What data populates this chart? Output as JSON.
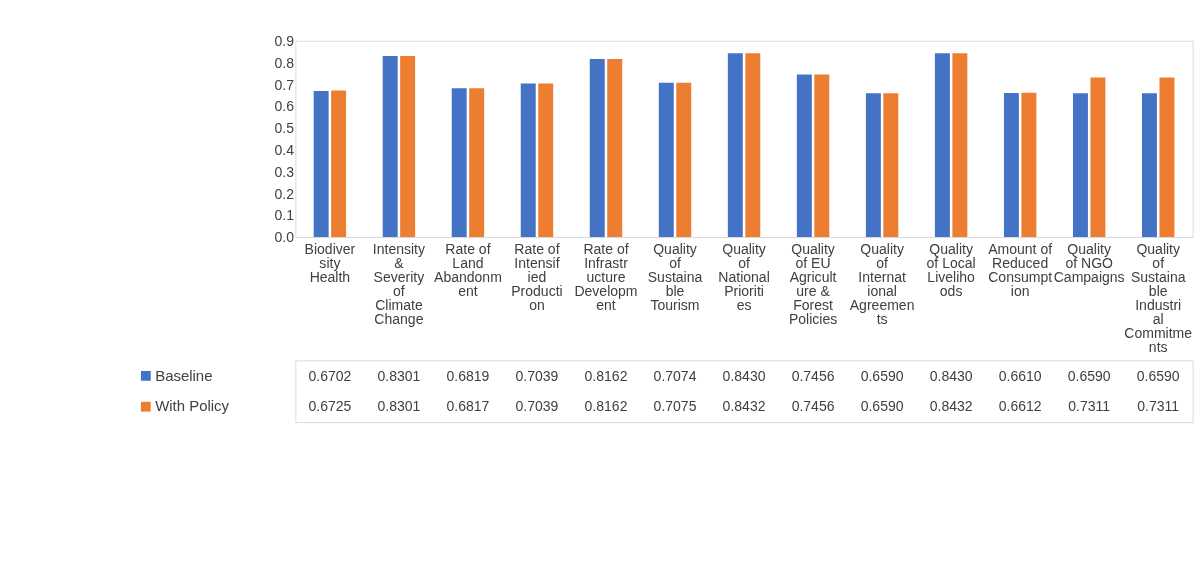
{
  "chart_data": {
    "type": "bar",
    "categories": [
      "Biodiversity Health",
      "Intensity & Severity of Climate Change",
      "Rate of Land Abandonment",
      "Rate of Intensified Production",
      "Rate of Infrastructure Development",
      "Quality of Sustainable Tourism",
      "Quality of National Priorities",
      "Quality of EU Agriculture & Forest Policies",
      "Quality of International Agreements",
      "Quality of Local Livelihoods",
      "Amount of Reduced Consumption",
      "Quality of NGO Campaigns",
      "Quality of Sustainable Industrial Commitments"
    ],
    "series": [
      {
        "name": "Baseline",
        "color": "#4472c4",
        "values": [
          0.6702,
          0.8301,
          0.6819,
          0.7039,
          0.8162,
          0.7074,
          0.843,
          0.7456,
          0.659,
          0.843,
          0.661,
          0.659,
          0.659
        ],
        "value_labels": [
          "0.6702",
          "0.8301",
          "0.6819",
          "0.7039",
          "0.8162",
          "0.7074",
          "0.8430",
          "0.7456",
          "0.6590",
          "0.8430",
          "0.6610",
          "0.6590",
          "0.6590"
        ]
      },
      {
        "name": "With Policy",
        "color": "#ed7d31",
        "values": [
          0.6725,
          0.8301,
          0.6817,
          0.7039,
          0.8162,
          0.7075,
          0.8432,
          0.7456,
          0.659,
          0.8432,
          0.6612,
          0.7311,
          0.7311
        ],
        "value_labels": [
          "0.6725",
          "0.8301",
          "0.6817",
          "0.7039",
          "0.8162",
          "0.7075",
          "0.8432",
          "0.7456",
          "0.6590",
          "0.8432",
          "0.6612",
          "0.7311",
          "0.7311"
        ]
      }
    ],
    "ylim": [
      0,
      0.9
    ],
    "yticks": [
      {
        "value": 0,
        "label": "0.0"
      },
      0.1,
      0.2,
      0.3,
      0.4,
      0.5,
      0.6,
      0.7,
      0.8,
      0.9
    ],
    "legend": "bottom"
  }
}
